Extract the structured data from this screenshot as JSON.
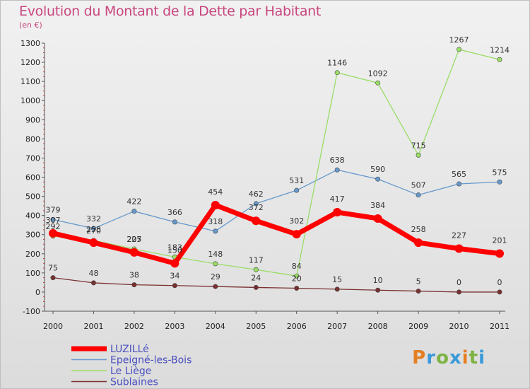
{
  "title": "Evolution du Montant de la Dette par Habitant",
  "subtitle": "(en €)",
  "brand": [
    "P",
    "r",
    "o",
    "x",
    "i",
    "t",
    "i"
  ],
  "chart_data": {
    "type": "line",
    "x": [
      "2000",
      "2001",
      "2002",
      "2003",
      "2004",
      "2005",
      "2006",
      "2007",
      "2008",
      "2009",
      "2010",
      "2011"
    ],
    "ylim": [
      -100,
      1300
    ],
    "yticks": [
      -100,
      0,
      100,
      200,
      300,
      400,
      500,
      600,
      700,
      800,
      900,
      1000,
      1100,
      1200,
      1300
    ],
    "grid": false,
    "legend_position": "bottom-left",
    "series": [
      {
        "name": "LUZILLé",
        "color": "#ff0000",
        "width": 7,
        "values": [
          307,
          258,
          207,
          150,
          454,
          372,
          302,
          417,
          384,
          258,
          227,
          201
        ]
      },
      {
        "name": "Epeigné-les-Bois",
        "color": "#6699cc",
        "width": 1.3,
        "values": [
          379,
          332,
          422,
          366,
          318,
          462,
          531,
          638,
          590,
          507,
          565,
          575
        ]
      },
      {
        "name": "Le Liège",
        "color": "#99dd66",
        "width": 1.3,
        "values": [
          292,
          270,
          225,
          183,
          148,
          117,
          84,
          1146,
          1092,
          715,
          1267,
          1214
        ]
      },
      {
        "name": "Sublaines",
        "color": "#7a3030",
        "width": 1.3,
        "values": [
          75,
          48,
          38,
          34,
          29,
          24,
          20,
          15,
          10,
          5,
          0,
          0
        ]
      }
    ]
  }
}
